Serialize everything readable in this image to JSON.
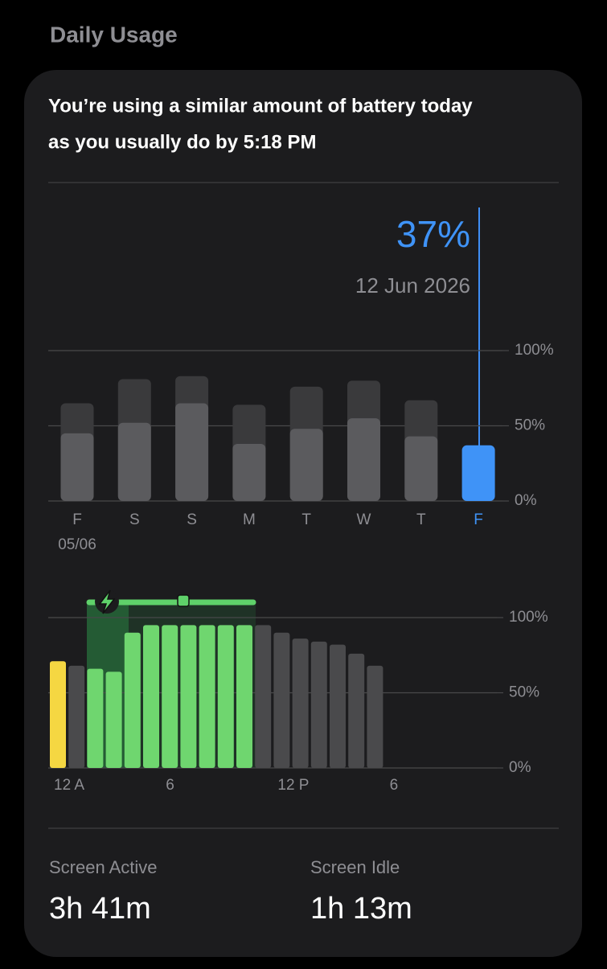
{
  "header": {
    "title": "Daily Usage"
  },
  "summary": [
    "You’re using a similar amount of battery today",
    "as you usually do by 5:18 PM"
  ],
  "chart_data": [
    {
      "type": "bar",
      "categories": [
        "F",
        "S",
        "S",
        "M",
        "T",
        "W",
        "T",
        "F"
      ],
      "x_sublabels": [
        "05/06",
        null,
        null,
        null,
        null,
        null,
        null,
        null
      ],
      "series": [
        {
          "color": "#3a3a3c",
          "values": [
            65,
            81,
            83,
            64,
            76,
            80,
            67,
            null
          ]
        },
        {
          "colors": [
            "#5b5b5e",
            "#5b5b5e",
            "#5b5b5e",
            "#5b5b5e",
            "#5b5b5e",
            "#5b5b5e",
            "#5b5b5e",
            "#3f93f7"
          ],
          "values": [
            45,
            52,
            65,
            38,
            48,
            55,
            43,
            37
          ],
          "value_labels": [
            null,
            null,
            null,
            null,
            null,
            null,
            null,
            "37%"
          ]
        }
      ],
      "highlight_index": 7,
      "annotation": "12 Jun 2026",
      "ylim": [
        0,
        100
      ],
      "yticks": [
        {
          "value": 0,
          "label": "0%"
        },
        {
          "value": 50,
          "label": "50%"
        },
        {
          "value": 100,
          "label": "100%"
        }
      ],
      "grid": true
    },
    {
      "type": "bar",
      "categories": [
        "12 A",
        null,
        null,
        null,
        null,
        null,
        "6",
        null,
        null,
        null,
        null,
        null,
        "12 P",
        null,
        null,
        null,
        null,
        null,
        "6",
        null,
        null,
        null,
        null,
        null
      ],
      "values": [
        71,
        68,
        66,
        64,
        90,
        95,
        95,
        95,
        95,
        95,
        95,
        95,
        90,
        86,
        84,
        82,
        76,
        68,
        null,
        null,
        null,
        null,
        null,
        null
      ],
      "colors": [
        "#f5d742",
        "#4a4a4c",
        "#6fd66f",
        "#6fd66f",
        "#6fd66f",
        "#6fd66f",
        "#6fd66f",
        "#6fd66f",
        "#6fd66f",
        "#6fd66f",
        "#6fd66f",
        "#4a4a4c",
        "#4a4a4c",
        "#4a4a4c",
        "#4a4a4c",
        "#4a4a4c",
        "#4a4a4c",
        "#4a4a4c",
        null,
        null,
        null,
        null,
        null,
        null
      ],
      "ylim": [
        0,
        100
      ],
      "yticks": [
        {
          "value": 0,
          "label": "0%"
        },
        {
          "value": 50,
          "label": "50%"
        },
        {
          "value": 100,
          "label": "100%"
        }
      ],
      "grid": true
    }
  ],
  "stats": [
    {
      "label": "Screen Active",
      "value": "3h 41m"
    },
    {
      "label": "Screen Idle",
      "value": "1h 13m"
    }
  ]
}
